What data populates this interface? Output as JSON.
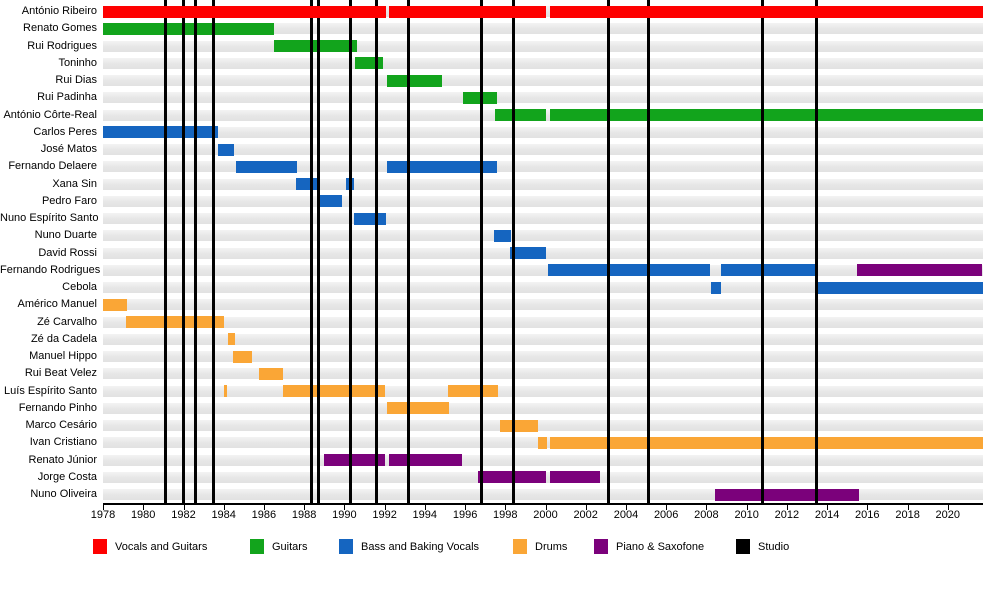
{
  "chart_data": {
    "type": "timeline",
    "x_axis": {
      "min": 1978,
      "max": 2021.75,
      "ticks": [
        1978,
        1980,
        1982,
        1984,
        1986,
        1988,
        1990,
        1992,
        1994,
        1996,
        1998,
        2000,
        2002,
        2004,
        2006,
        2008,
        2010,
        2012,
        2014,
        2016,
        2018,
        2020
      ]
    },
    "palette": {
      "vocals": "#FE0000",
      "guitars": "#12A41C",
      "bass": "#1565C0",
      "drums": "#FAA636",
      "piano": "#7B017B",
      "studio": "#000000"
    },
    "legend": [
      {
        "label": "Vocals and Guitars",
        "role": "vocals"
      },
      {
        "label": "Guitars",
        "role": "guitars"
      },
      {
        "label": "Bass and Baking Vocals",
        "role": "bass"
      },
      {
        "label": "Drums",
        "role": "drums"
      },
      {
        "label": "Piano & Saxofone",
        "role": "piano"
      },
      {
        "label": "Studio",
        "role": "studio"
      }
    ],
    "studio_lines": [
      1981.1,
      1982.0,
      1982.6,
      1983.5,
      1988.35,
      1988.7,
      1990.3,
      1991.6,
      1993.2,
      1996.8,
      1998.4,
      2003.15,
      2005.1,
      2010.8,
      2013.45
    ],
    "members": [
      {
        "name": "António Ribeiro",
        "segments": [
          {
            "role": "vocals",
            "from": 1978,
            "to": 1992.05
          },
          {
            "role": "vocals",
            "from": 1992.2,
            "to": 2000.05
          },
          {
            "role": "vocals",
            "from": 2000.2,
            "to": 2021.75
          }
        ]
      },
      {
        "name": "Renato Gomes",
        "segments": [
          {
            "role": "guitars",
            "from": 1978,
            "to": 1986.5
          }
        ]
      },
      {
        "name": "Rui Rodrigues",
        "segments": [
          {
            "role": "guitars",
            "from": 1986.5,
            "to": 1990.6
          }
        ]
      },
      {
        "name": "Toninho",
        "segments": [
          {
            "role": "guitars",
            "from": 1990.55,
            "to": 1991.9
          }
        ]
      },
      {
        "name": "Rui Dias",
        "segments": [
          {
            "role": "guitars",
            "from": 1992.1,
            "to": 1994.85
          }
        ]
      },
      {
        "name": "Rui Padinha",
        "segments": [
          {
            "role": "guitars",
            "from": 1995.9,
            "to": 1997.6
          }
        ]
      },
      {
        "name": "António Côrte-Real",
        "segments": [
          {
            "role": "guitars",
            "from": 1997.5,
            "to": 2000.05
          },
          {
            "role": "guitars",
            "from": 2000.2,
            "to": 2021.75
          }
        ]
      },
      {
        "name": "Carlos Peres",
        "segments": [
          {
            "role": "bass",
            "from": 1978,
            "to": 1983.7
          }
        ]
      },
      {
        "name": "José Matos",
        "segments": [
          {
            "role": "bass",
            "from": 1983.7,
            "to": 1984.5
          }
        ]
      },
      {
        "name": "Fernando Delaere",
        "segments": [
          {
            "role": "bass",
            "from": 1984.6,
            "to": 1987.65
          },
          {
            "role": "bass",
            "from": 1992.1,
            "to": 1997.6
          }
        ]
      },
      {
        "name": "Xana Sin",
        "segments": [
          {
            "role": "bass",
            "from": 1987.6,
            "to": 1988.7
          },
          {
            "role": "bass",
            "from": 1990.1,
            "to": 1990.5
          }
        ]
      },
      {
        "name": "Pedro Faro",
        "segments": [
          {
            "role": "bass",
            "from": 1988.7,
            "to": 1989.9
          }
        ]
      },
      {
        "name": "Nuno Espírito Santo",
        "segments": [
          {
            "role": "bass",
            "from": 1990.5,
            "to": 1992.05
          }
        ]
      },
      {
        "name": "Nuno Duarte",
        "segments": [
          {
            "role": "bass",
            "from": 1997.45,
            "to": 1998.3
          }
        ]
      },
      {
        "name": "David Rossi",
        "segments": [
          {
            "role": "bass",
            "from": 1998.25,
            "to": 2000.05
          }
        ]
      },
      {
        "name": "Fernando Rodrigues",
        "segments": [
          {
            "role": "bass",
            "from": 2000.1,
            "to": 2008.2
          },
          {
            "role": "bass",
            "from": 2008.7,
            "to": 2013.4
          },
          {
            "role": "piano",
            "from": 2015.5,
            "to": 2021.7
          }
        ]
      },
      {
        "name": "Cebola",
        "segments": [
          {
            "role": "bass",
            "from": 2008.2,
            "to": 2008.7
          },
          {
            "role": "bass",
            "from": 2013.45,
            "to": 2021.75
          }
        ]
      },
      {
        "name": "Américo Manuel",
        "segments": [
          {
            "role": "drums",
            "from": 1978,
            "to": 1979.2
          }
        ]
      },
      {
        "name": "Zé Carvalho",
        "segments": [
          {
            "role": "drums",
            "from": 1979.15,
            "to": 1984.0
          }
        ]
      },
      {
        "name": "Zé da Cadela",
        "segments": [
          {
            "role": "drums",
            "from": 1984.2,
            "to": 1984.55
          }
        ]
      },
      {
        "name": "Manuel Hippo",
        "segments": [
          {
            "role": "drums",
            "from": 1984.45,
            "to": 1985.4
          }
        ]
      },
      {
        "name": "Rui Beat Velez",
        "segments": [
          {
            "role": "drums",
            "from": 1985.75,
            "to": 1986.95
          }
        ]
      },
      {
        "name": "Luís Espírito Santo",
        "segments": [
          {
            "role": "drums",
            "from": 1984.0,
            "to": 1984.15
          },
          {
            "role": "drums",
            "from": 1986.95,
            "to": 1992.0
          },
          {
            "role": "drums",
            "from": 1995.15,
            "to": 1997.65
          }
        ]
      },
      {
        "name": "Fernando Pinho",
        "segments": [
          {
            "role": "drums",
            "from": 1992.1,
            "to": 1995.2
          }
        ]
      },
      {
        "name": "Marco Cesário",
        "segments": [
          {
            "role": "drums",
            "from": 1997.75,
            "to": 1999.65
          }
        ]
      },
      {
        "name": "Ivan Cristiano",
        "segments": [
          {
            "role": "drums",
            "from": 1999.6,
            "to": 2000.05
          },
          {
            "role": "drums",
            "from": 2000.2,
            "to": 2021.75
          }
        ]
      },
      {
        "name": "Renato Júnior",
        "segments": [
          {
            "role": "piano",
            "from": 1989.0,
            "to": 1992.0
          },
          {
            "role": "piano",
            "from": 1992.2,
            "to": 1995.85
          }
        ]
      },
      {
        "name": "Jorge Costa",
        "segments": [
          {
            "role": "piano",
            "from": 1996.65,
            "to": 2000.05
          },
          {
            "role": "piano",
            "from": 2000.2,
            "to": 2002.7
          }
        ]
      },
      {
        "name": "Nuno Oliveira",
        "segments": [
          {
            "role": "piano",
            "from": 2008.4,
            "to": 2015.6
          }
        ]
      }
    ]
  }
}
